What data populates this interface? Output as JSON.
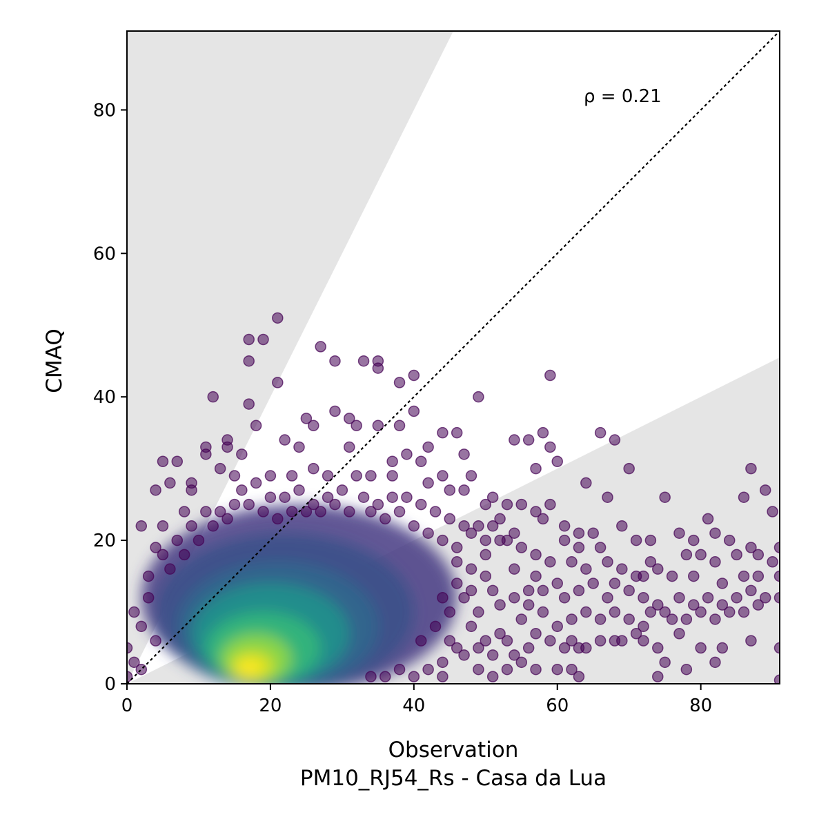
{
  "chart_data": {
    "type": "scatter",
    "xlabel": "Observation",
    "xlabel_sub": "PM10_RJ54_Rs - Casa da Lua",
    "ylabel": "CMAQ",
    "xlim": [
      0,
      91
    ],
    "ylim": [
      0,
      91
    ],
    "x_ticks": [
      0,
      20,
      40,
      60,
      80
    ],
    "y_ticks": [
      0,
      20,
      40,
      60,
      80
    ],
    "annotation": "ρ = 0.21",
    "grid": false,
    "identity_line": true,
    "factor_of_two_band": true,
    "colormap": "viridis (point density)",
    "colors": {
      "band": "#e5e5e5",
      "low_density": "#440154",
      "high_density": "#fde725"
    },
    "outlier_points": [
      [
        21,
        51
      ],
      [
        17,
        48
      ],
      [
        19,
        48
      ],
      [
        17,
        45
      ],
      [
        27,
        47
      ],
      [
        33,
        45
      ],
      [
        35,
        45
      ],
      [
        35,
        44
      ],
      [
        29,
        45
      ],
      [
        21,
        42
      ],
      [
        38,
        42
      ],
      [
        40,
        43
      ],
      [
        59,
        43
      ],
      [
        49,
        40
      ],
      [
        12,
        40
      ],
      [
        17,
        39
      ],
      [
        40,
        38
      ],
      [
        29,
        38
      ],
      [
        31,
        37
      ],
      [
        32,
        36
      ],
      [
        25,
        37
      ],
      [
        26,
        36
      ],
      [
        35,
        36
      ],
      [
        18,
        36
      ],
      [
        38,
        36
      ],
      [
        58,
        35
      ],
      [
        66,
        35
      ],
      [
        68,
        34
      ],
      [
        54,
        34
      ],
      [
        56,
        34
      ],
      [
        44,
        35
      ],
      [
        46,
        35
      ],
      [
        42,
        33
      ],
      [
        14,
        34
      ],
      [
        14,
        33
      ],
      [
        11,
        33
      ],
      [
        22,
        34
      ],
      [
        24,
        33
      ],
      [
        31,
        33
      ],
      [
        39,
        32
      ],
      [
        47,
        32
      ],
      [
        59,
        33
      ],
      [
        16,
        32
      ],
      [
        11,
        32
      ],
      [
        60,
        31
      ],
      [
        57,
        30
      ],
      [
        70,
        30
      ],
      [
        87,
        30
      ],
      [
        5,
        31
      ],
      [
        7,
        31
      ],
      [
        13,
        30
      ],
      [
        26,
        30
      ],
      [
        37,
        31
      ],
      [
        41,
        31
      ],
      [
        64,
        28
      ],
      [
        67,
        26
      ],
      [
        75,
        26
      ],
      [
        86,
        26
      ],
      [
        89,
        27
      ],
      [
        6,
        28
      ],
      [
        9,
        28
      ],
      [
        9,
        27
      ],
      [
        15,
        29
      ],
      [
        20,
        29
      ],
      [
        23,
        29
      ],
      [
        28,
        29
      ],
      [
        32,
        29
      ],
      [
        34,
        29
      ],
      [
        37,
        29
      ],
      [
        44,
        29
      ],
      [
        48,
        29
      ],
      [
        51,
        26
      ],
      [
        53,
        25
      ],
      [
        55,
        25
      ],
      [
        59,
        25
      ],
      [
        90,
        24
      ],
      [
        2,
        22
      ],
      [
        5,
        22
      ],
      [
        4,
        27
      ],
      [
        8,
        24
      ],
      [
        42,
        28
      ],
      [
        45,
        27
      ],
      [
        47,
        27
      ],
      [
        50,
        25
      ],
      [
        57,
        24
      ],
      [
        58,
        23
      ],
      [
        61,
        22
      ],
      [
        63,
        21
      ],
      [
        65,
        21
      ],
      [
        69,
        22
      ],
      [
        71,
        20
      ],
      [
        73,
        20
      ],
      [
        77,
        21
      ],
      [
        79,
        20
      ],
      [
        81,
        23
      ],
      [
        82,
        21
      ],
      [
        84,
        20
      ],
      [
        85,
        18
      ],
      [
        87,
        19
      ],
      [
        91,
        19
      ],
      [
        78,
        18
      ],
      [
        80,
        18
      ],
      [
        82,
        17
      ],
      [
        88,
        18
      ],
      [
        90,
        17
      ],
      [
        73,
        17
      ],
      [
        72,
        15
      ],
      [
        74,
        16
      ],
      [
        76,
        15
      ],
      [
        79,
        15
      ],
      [
        83,
        14
      ],
      [
        86,
        15
      ],
      [
        88,
        15
      ],
      [
        91,
        15
      ],
      [
        61,
        20
      ],
      [
        63,
        19
      ],
      [
        66,
        19
      ],
      [
        67,
        17
      ],
      [
        69,
        16
      ],
      [
        71,
        15
      ],
      [
        62,
        17
      ],
      [
        64,
        16
      ],
      [
        57,
        18
      ],
      [
        59,
        17
      ],
      [
        55,
        19
      ],
      [
        53,
        20
      ],
      [
        57,
        15
      ],
      [
        58,
        13
      ],
      [
        60,
        14
      ],
      [
        61,
        12
      ],
      [
        63,
        13
      ],
      [
        65,
        14
      ],
      [
        67,
        12
      ],
      [
        68,
        14
      ],
      [
        70,
        13
      ],
      [
        72,
        12
      ],
      [
        74,
        11
      ],
      [
        75,
        10
      ],
      [
        77,
        12
      ],
      [
        79,
        11
      ],
      [
        81,
        12
      ],
      [
        83,
        11
      ],
      [
        85,
        12
      ],
      [
        87,
        13
      ],
      [
        89,
        12
      ],
      [
        91,
        12
      ],
      [
        64,
        10
      ],
      [
        66,
        9
      ],
      [
        68,
        10
      ],
      [
        70,
        9
      ],
      [
        72,
        8
      ],
      [
        73,
        10
      ],
      [
        76,
        9
      ],
      [
        78,
        9
      ],
      [
        80,
        10
      ],
      [
        82,
        9
      ],
      [
        84,
        10
      ],
      [
        86,
        10
      ],
      [
        88,
        11
      ],
      [
        62,
        9
      ],
      [
        60,
        8
      ],
      [
        58,
        10
      ],
      [
        56,
        11
      ],
      [
        54,
        12
      ],
      [
        55,
        9
      ],
      [
        57,
        7
      ],
      [
        59,
        6
      ],
      [
        61,
        5
      ],
      [
        62,
        6
      ],
      [
        63,
        5
      ],
      [
        64,
        5
      ],
      [
        66,
        6
      ],
      [
        68,
        6
      ],
      [
        69,
        6
      ],
      [
        71,
        7
      ],
      [
        72,
        6
      ],
      [
        74,
        5
      ],
      [
        75,
        3
      ],
      [
        77,
        7
      ],
      [
        78,
        2
      ],
      [
        80,
        5
      ],
      [
        82,
        3
      ],
      [
        83,
        5
      ],
      [
        87,
        6
      ],
      [
        91,
        5
      ],
      [
        74,
        1
      ],
      [
        91,
        0.5
      ],
      [
        55,
        3
      ],
      [
        57,
        2
      ],
      [
        60,
        2
      ],
      [
        62,
        2
      ],
      [
        63,
        1
      ],
      [
        54,
        4
      ],
      [
        56,
        5
      ],
      [
        52,
        7
      ],
      [
        50,
        6
      ],
      [
        48,
        8
      ],
      [
        46,
        5
      ],
      [
        44,
        3
      ],
      [
        49,
        2
      ],
      [
        51,
        4
      ],
      [
        53,
        6
      ],
      [
        44,
        12
      ],
      [
        46,
        14
      ],
      [
        48,
        16
      ],
      [
        50,
        18
      ],
      [
        52,
        20
      ],
      [
        54,
        16
      ],
      [
        56,
        13
      ],
      [
        6,
        16
      ],
      [
        5,
        18
      ],
      [
        4,
        19
      ],
      [
        3,
        15
      ],
      [
        3,
        12
      ],
      [
        1,
        10
      ],
      [
        2,
        8
      ],
      [
        4,
        6
      ],
      [
        0,
        5
      ],
      [
        1,
        3
      ],
      [
        2,
        2
      ],
      [
        0,
        1
      ],
      [
        18,
        28
      ],
      [
        16,
        27
      ],
      [
        20,
        26
      ],
      [
        22,
        26
      ],
      [
        24,
        27
      ],
      [
        26,
        25
      ],
      [
        28,
        26
      ],
      [
        30,
        27
      ],
      [
        33,
        26
      ],
      [
        35,
        25
      ],
      [
        37,
        26
      ],
      [
        39,
        26
      ],
      [
        41,
        25
      ],
      [
        43,
        24
      ],
      [
        45,
        23
      ],
      [
        47,
        22
      ],
      [
        49,
        22
      ],
      [
        51,
        22
      ],
      [
        38,
        24
      ],
      [
        36,
        23
      ],
      [
        34,
        24
      ],
      [
        31,
        24
      ],
      [
        29,
        25
      ],
      [
        27,
        24
      ],
      [
        25,
        24
      ],
      [
        23,
        24
      ],
      [
        21,
        23
      ],
      [
        19,
        24
      ],
      [
        17,
        25
      ],
      [
        15,
        25
      ],
      [
        13,
        24
      ],
      [
        11,
        24
      ],
      [
        9,
        22
      ],
      [
        7,
        20
      ],
      [
        8,
        18
      ],
      [
        10,
        20
      ],
      [
        12,
        22
      ],
      [
        14,
        23
      ],
      [
        40,
        22
      ],
      [
        42,
        21
      ],
      [
        44,
        20
      ],
      [
        46,
        19
      ],
      [
        48,
        21
      ],
      [
        50,
        20
      ],
      [
        52,
        23
      ],
      [
        54,
        21
      ],
      [
        46,
        17
      ],
      [
        48,
        13
      ],
      [
        50,
        15
      ],
      [
        52,
        11
      ],
      [
        51,
        13
      ],
      [
        49,
        10
      ],
      [
        47,
        12
      ],
      [
        45,
        10
      ],
      [
        43,
        8
      ],
      [
        41,
        6
      ],
      [
        45,
        6
      ],
      [
        47,
        4
      ],
      [
        49,
        5
      ],
      [
        51,
        1
      ],
      [
        53,
        2
      ],
      [
        42,
        2
      ],
      [
        44,
        1
      ],
      [
        40,
        1
      ],
      [
        38,
        2
      ],
      [
        36,
        1
      ],
      [
        34,
        1
      ]
    ]
  }
}
